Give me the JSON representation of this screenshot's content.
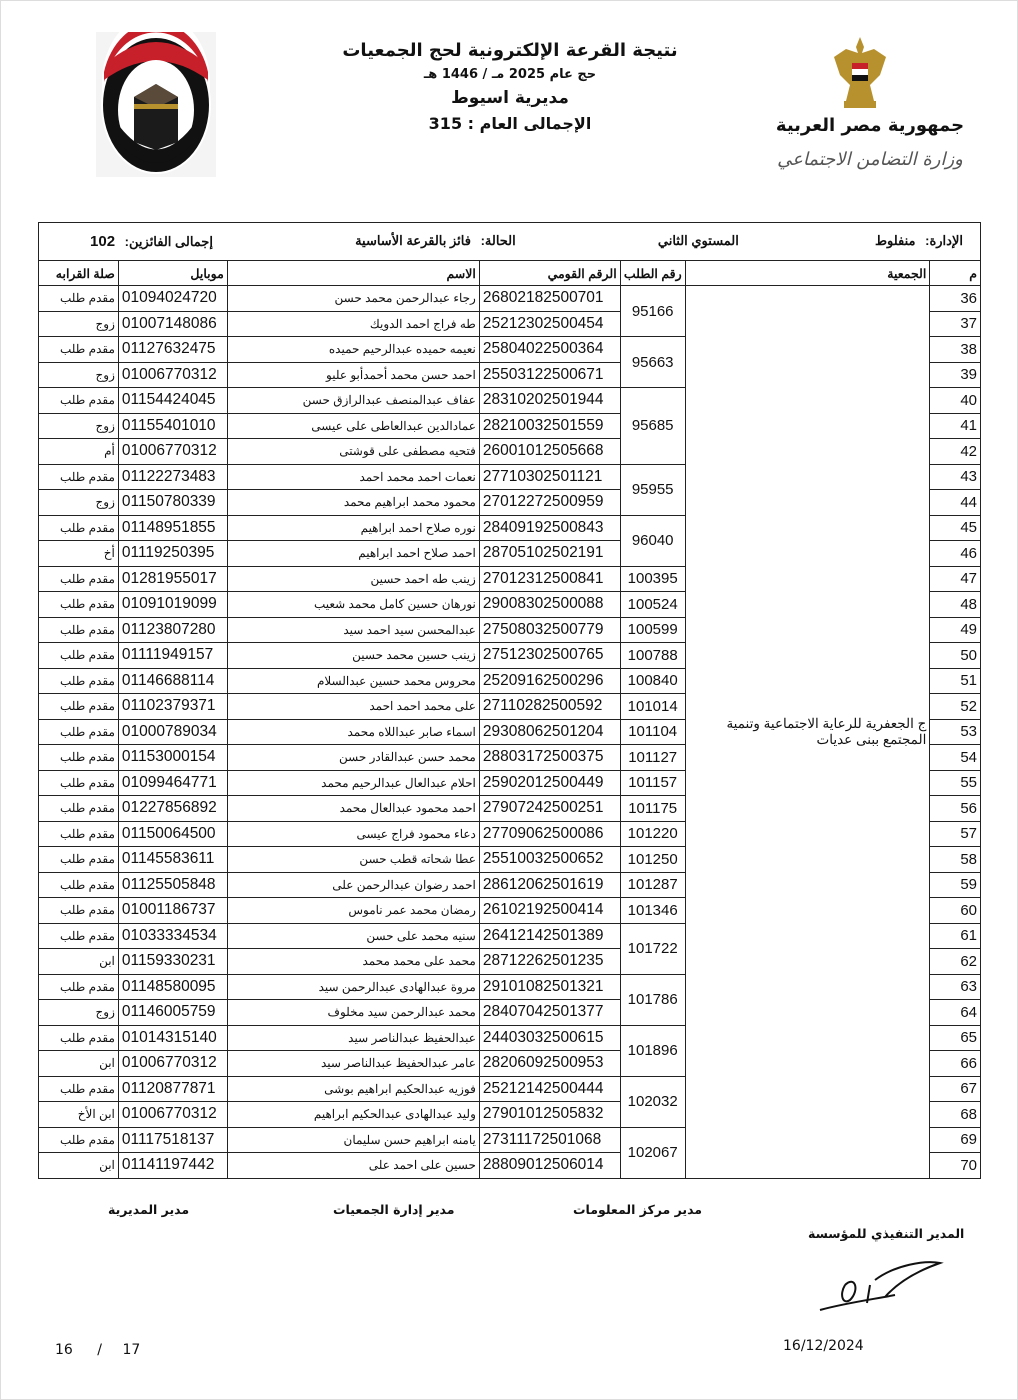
{
  "header": {
    "title": "نتيجة القرعة الإلكترونية لحج الجمعيات",
    "year": "حج عام 2025 مـ / 1446 هـ",
    "directorate": "مديرية اسيوط",
    "grand_total": "الإجمالى العام : 315",
    "republic": "جمهورية مصر العربية",
    "ministry": "وزارة التضامن الاجتماعي"
  },
  "info": {
    "admin_label": "الإدارة:",
    "admin_value": "منفلوط",
    "level": "المستوي الثاني",
    "status_label": "الحالة:",
    "status_value": "فائز بالقرعة الأساسية",
    "winners_label": "إجمالى الفائزين:",
    "winners_value": "102"
  },
  "columns": {
    "index": "م",
    "association": "الجمعية",
    "request_no": "رقم الطلب",
    "national_id": "الرقم القومي",
    "name": "الاسم",
    "mobile": "موبايل",
    "relation": "صلة القرابه"
  },
  "association": "ج الجعفرية للرعاية الاجتماعية وتنمية المجتمع ببنى عديات",
  "rows": [
    {
      "index": "36",
      "request_no": "95166",
      "national_id": "26802182500701",
      "name": "رجاء عبدالرحمن محمد حسن",
      "mobile": "01094024720",
      "relation": "مقدم طلب"
    },
    {
      "index": "37",
      "request_no": "95166",
      "national_id": "25212302500454",
      "name": "طه فراج احمد الدويك",
      "mobile": "01007148086",
      "relation": "زوج"
    },
    {
      "index": "38",
      "request_no": "95663",
      "national_id": "25804022500364",
      "name": "نعيمه حميده عبدالرحيم حميده",
      "mobile": "01127632475",
      "relation": "مقدم طلب"
    },
    {
      "index": "39",
      "request_no": "95663",
      "national_id": "25503122500671",
      "name": "احمد حسن محمد أحمدأبو عليو",
      "mobile": "01006770312",
      "relation": "زوج"
    },
    {
      "index": "40",
      "request_no": "95685",
      "national_id": "28310202501944",
      "name": "عفاف عبدالمنصف عبدالرازق حسن",
      "mobile": "01154424045",
      "relation": "مقدم طلب"
    },
    {
      "index": "41",
      "request_no": "95685",
      "national_id": "28210032501559",
      "name": "عمادالدين عبدالعاطى على عيسى",
      "mobile": "01155401010",
      "relation": "زوج"
    },
    {
      "index": "42",
      "request_no": "95685",
      "national_id": "26001012505668",
      "name": "فتحيه مصطفى على قوشتى",
      "mobile": "01006770312",
      "relation": "أم"
    },
    {
      "index": "43",
      "request_no": "95955",
      "national_id": "27710302501121",
      "name": "نعمات احمد محمد احمد",
      "mobile": "01122273483",
      "relation": "مقدم طلب"
    },
    {
      "index": "44",
      "request_no": "95955",
      "national_id": "27012272500959",
      "name": "محمود محمد ابراهيم محمد",
      "mobile": "01150780339",
      "relation": "زوج"
    },
    {
      "index": "45",
      "request_no": "96040",
      "national_id": "28409192500843",
      "name": "نوره صلاح احمد ابراهيم",
      "mobile": "01148951855",
      "relation": "مقدم طلب"
    },
    {
      "index": "46",
      "request_no": "96040",
      "national_id": "28705102502191",
      "name": "احمد صلاح احمد ابراهيم",
      "mobile": "01119250395",
      "relation": "أخ"
    },
    {
      "index": "47",
      "request_no": "100395",
      "national_id": "27012312500841",
      "name": "زينب طه احمد حسين",
      "mobile": "01281955017",
      "relation": "مقدم طلب"
    },
    {
      "index": "48",
      "request_no": "100524",
      "national_id": "29008302500088",
      "name": "نورهان حسين كامل محمد شعيب",
      "mobile": "01091019099",
      "relation": "مقدم طلب"
    },
    {
      "index": "49",
      "request_no": "100599",
      "national_id": "27508032500779",
      "name": "عبدالمحسن سيد احمد سيد",
      "mobile": "01123807280",
      "relation": "مقدم طلب"
    },
    {
      "index": "50",
      "request_no": "100788",
      "national_id": "27512302500765",
      "name": "زينب حسين محمد حسين",
      "mobile": "01111949157",
      "relation": "مقدم طلب"
    },
    {
      "index": "51",
      "request_no": "100840",
      "national_id": "25209162500296",
      "name": "محروس محمد حسين عبدالسلام",
      "mobile": "01146688114",
      "relation": "مقدم طلب"
    },
    {
      "index": "52",
      "request_no": "101014",
      "national_id": "27110282500592",
      "name": "على محمد احمد احمد",
      "mobile": "01102379371",
      "relation": "مقدم طلب"
    },
    {
      "index": "53",
      "request_no": "101104",
      "national_id": "29308062501204",
      "name": "اسماء صابر عبداللاه محمد",
      "mobile": "01000789034",
      "relation": "مقدم طلب"
    },
    {
      "index": "54",
      "request_no": "101127",
      "national_id": "28803172500375",
      "name": "محمد حسن عبدالقادر حسن",
      "mobile": "01153000154",
      "relation": "مقدم طلب"
    },
    {
      "index": "55",
      "request_no": "101157",
      "national_id": "25902012500449",
      "name": "احلام عبدالعال عبدالرحيم محمد",
      "mobile": "01099464771",
      "relation": "مقدم طلب"
    },
    {
      "index": "56",
      "request_no": "101175",
      "national_id": "27907242500251",
      "name": "احمد محمود عبدالعال محمد",
      "mobile": "01227856892",
      "relation": "مقدم طلب"
    },
    {
      "index": "57",
      "request_no": "101220",
      "national_id": "27709062500086",
      "name": "دعاء محمود فراج عيسى",
      "mobile": "01150064500",
      "relation": "مقدم طلب"
    },
    {
      "index": "58",
      "request_no": "101250",
      "national_id": "25510032500652",
      "name": "عطا شحاته قطب حسن",
      "mobile": "01145583611",
      "relation": "مقدم طلب"
    },
    {
      "index": "59",
      "request_no": "101287",
      "national_id": "28612062501619",
      "name": "احمد رضوان عبدالرحمن على",
      "mobile": "01125505848",
      "relation": "مقدم طلب"
    },
    {
      "index": "60",
      "request_no": "101346",
      "national_id": "26102192500414",
      "name": "رمضان محمد عمر ناموس",
      "mobile": "01001186737",
      "relation": "مقدم طلب"
    },
    {
      "index": "61",
      "request_no": "101722",
      "national_id": "26412142501389",
      "name": "سنيه محمد على حسن",
      "mobile": "01033334534",
      "relation": "مقدم طلب"
    },
    {
      "index": "62",
      "request_no": "101722",
      "national_id": "28712262501235",
      "name": "محمد على محمد محمد",
      "mobile": "01159330231",
      "relation": "ابن"
    },
    {
      "index": "63",
      "request_no": "101786",
      "national_id": "29101082501321",
      "name": "مروة عبدالهادى عبدالرحمن سيد",
      "mobile": "01148580095",
      "relation": "مقدم طلب"
    },
    {
      "index": "64",
      "request_no": "101786",
      "national_id": "28407042501377",
      "name": "محمد عبدالرحمن سيد مخلوف",
      "mobile": "01146005759",
      "relation": "زوج"
    },
    {
      "index": "65",
      "request_no": "101896",
      "national_id": "24403032500615",
      "name": "عبدالحفيظ عبدالناصر سيد",
      "mobile": "01014315140",
      "relation": "مقدم طلب"
    },
    {
      "index": "66",
      "request_no": "101896",
      "national_id": "28206092500953",
      "name": "عامر عبدالحفيظ عبدالناصر سيد",
      "mobile": "01006770312",
      "relation": "ابن"
    },
    {
      "index": "67",
      "request_no": "102032",
      "national_id": "25212142500444",
      "name": "فوزيه عبدالحكيم ابراهيم بوشى",
      "mobile": "01120877871",
      "relation": "مقدم طلب"
    },
    {
      "index": "68",
      "request_no": "102032",
      "national_id": "27901012505832",
      "name": "وليد عبدالهادى عبدالحكيم ابراهيم",
      "mobile": "01006770312",
      "relation": "ابن الأخ"
    },
    {
      "index": "69",
      "request_no": "102067",
      "national_id": "27311172501068",
      "name": "يامنه ابراهيم حسن سليمان",
      "mobile": "01117518137",
      "relation": "مقدم طلب"
    },
    {
      "index": "70",
      "request_no": "102067",
      "national_id": "28809012506014",
      "name": "حسين على احمد على",
      "mobile": "01141197442",
      "relation": "ابن"
    }
  ],
  "footer": {
    "directorate_manager": "مدير المديرية",
    "associations_manager": "مدير إدارة الجمعيات",
    "info_center_manager": "مدير مركز المعلومات",
    "executive_director": "المدير التنفيذي للمؤسسة",
    "date": "16/12/2024",
    "page_current": "16",
    "page_sep": "/",
    "page_total": "17"
  },
  "colors": {
    "flag_red": "#c8202a",
    "flag_black": "#111111",
    "gold": "#b8912f"
  }
}
